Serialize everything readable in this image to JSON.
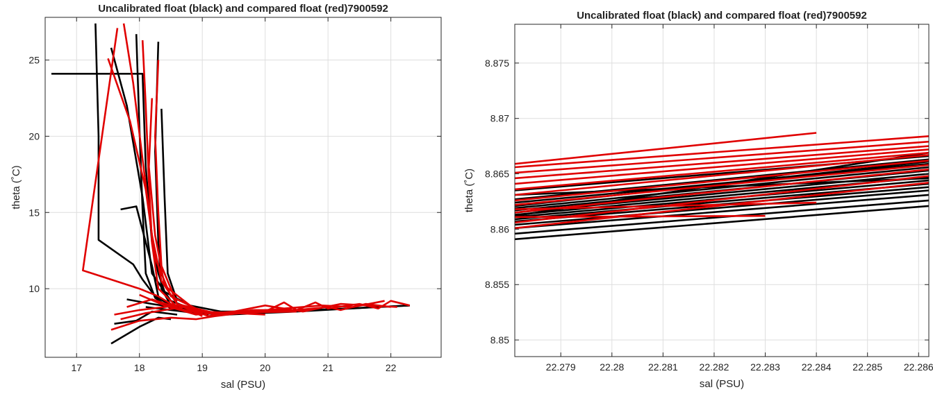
{
  "colors": {
    "uncalibrated": "#000000",
    "compared": "#e00000",
    "grid": "#dedede",
    "axis": "#262626"
  },
  "chart_data": [
    {
      "type": "line",
      "title": "Uncalibrated float (black) and compared float (red)7900592",
      "xlabel": "sal (PSU)",
      "ylabel": "theta (˚C)",
      "xlim": [
        16.5,
        22.8
      ],
      "ylim": [
        5.5,
        27.8
      ],
      "xticks": [
        17,
        18,
        19,
        20,
        21,
        22
      ],
      "yticks": [
        10,
        15,
        20,
        25
      ],
      "xtick_labels": [
        "17",
        "18",
        "19",
        "20",
        "21",
        "22"
      ],
      "ytick_labels": [
        "10",
        "15",
        "20",
        "25"
      ],
      "grid": true,
      "series": [
        {
          "color": "uncalibrated",
          "x": [
            16.6,
            18.05,
            18.1,
            18.2,
            18.3,
            18.4,
            18.8,
            19.3,
            20.2,
            21.3,
            22.3
          ],
          "y": [
            24.1,
            24.1,
            18.0,
            13.0,
            11.0,
            9.8,
            8.9,
            8.5,
            8.5,
            8.7,
            8.9
          ]
        },
        {
          "color": "uncalibrated",
          "x": [
            17.3,
            17.35,
            17.35,
            17.9,
            18.05,
            18.25,
            18.6,
            19.1
          ],
          "y": [
            27.4,
            20.0,
            13.2,
            11.6,
            10.6,
            9.5,
            8.7,
            8.3
          ]
        },
        {
          "color": "uncalibrated",
          "x": [
            17.55,
            17.8,
            18.05,
            18.2,
            18.5,
            19.0
          ],
          "y": [
            25.8,
            22.0,
            16.0,
            11.0,
            9.2,
            8.4
          ]
        },
        {
          "color": "uncalibrated",
          "x": [
            17.95,
            18.0,
            18.05,
            18.1,
            18.25,
            18.5,
            19.0
          ],
          "y": [
            26.7,
            20.5,
            15.2,
            11.0,
            9.4,
            8.7,
            8.3
          ]
        },
        {
          "color": "uncalibrated",
          "x": [
            18.3,
            18.25,
            18.3,
            18.35,
            18.5,
            19.0,
            20.0
          ],
          "y": [
            26.2,
            19.0,
            13.0,
            10.0,
            8.9,
            8.4,
            8.5
          ]
        },
        {
          "color": "uncalibrated",
          "x": [
            17.55,
            18.0,
            18.3,
            18.5
          ],
          "y": [
            6.4,
            7.5,
            8.1,
            8.0
          ]
        },
        {
          "color": "uncalibrated",
          "x": [
            17.6,
            17.95,
            18.2,
            18.6
          ],
          "y": [
            7.7,
            7.9,
            8.5,
            8.3
          ]
        },
        {
          "color": "uncalibrated",
          "x": [
            17.8,
            18.2,
            18.7,
            19.2
          ],
          "y": [
            9.3,
            9.0,
            8.7,
            8.3
          ]
        },
        {
          "color": "uncalibrated",
          "x": [
            18.1,
            18.5,
            18.9,
            19.4,
            20.5,
            21.8,
            22.3
          ],
          "y": [
            8.8,
            8.6,
            8.4,
            8.3,
            8.5,
            8.8,
            8.9
          ]
        },
        {
          "color": "uncalibrated",
          "x": [
            17.7,
            17.95,
            18.2,
            18.3
          ],
          "y": [
            15.2,
            15.4,
            11.5,
            9.5
          ]
        },
        {
          "color": "uncalibrated",
          "x": [
            18.35,
            18.4,
            18.45,
            18.6
          ],
          "y": [
            21.8,
            16.0,
            11.0,
            9.2
          ]
        },
        {
          "color": "compared",
          "x": [
            17.75,
            17.9,
            18.05,
            18.2,
            18.35,
            18.6,
            19.0
          ],
          "y": [
            27.4,
            23.5,
            18.5,
            13.5,
            10.5,
            9.0,
            8.2
          ]
        },
        {
          "color": "compared",
          "x": [
            17.5,
            17.85,
            18.1,
            18.25,
            18.5,
            19.0,
            20.0
          ],
          "y": [
            25.1,
            21.0,
            16.5,
            12.0,
            9.5,
            8.5,
            8.3
          ]
        },
        {
          "color": "compared",
          "x": [
            17.65,
            17.1,
            18.0,
            18.3,
            18.5,
            19.2
          ],
          "y": [
            27.1,
            11.2,
            10.0,
            9.5,
            9.0,
            8.3
          ]
        },
        {
          "color": "compared",
          "x": [
            18.05,
            18.1,
            18.15,
            18.2,
            18.3,
            18.6
          ],
          "y": [
            26.3,
            22.0,
            17.0,
            13.0,
            10.0,
            8.8
          ]
        },
        {
          "color": "compared",
          "x": [
            18.3,
            18.25,
            18.3,
            18.35,
            18.6,
            19.2,
            20.5
          ],
          "y": [
            25.0,
            20.0,
            15.0,
            11.5,
            9.0,
            8.4,
            8.5
          ]
        },
        {
          "color": "compared",
          "x": [
            18.2,
            18.15,
            18.25,
            18.4,
            18.9
          ],
          "y": [
            22.5,
            18.0,
            13.5,
            10.2,
            8.6
          ]
        },
        {
          "color": "compared",
          "x": [
            17.55,
            18.0,
            18.5,
            18.9,
            19.2,
            19.6,
            20.0,
            20.5,
            20.8,
            21.0,
            21.5,
            21.8,
            22.0,
            22.3
          ],
          "y": [
            7.3,
            7.9,
            8.1,
            8.0,
            8.2,
            8.4,
            8.5,
            8.6,
            9.1,
            8.7,
            9.0,
            8.7,
            9.2,
            8.9
          ]
        },
        {
          "color": "compared",
          "x": [
            17.6,
            18.0,
            18.6,
            19.3,
            20.0,
            20.3,
            20.5,
            21.0,
            21.2,
            21.6,
            22.0
          ],
          "y": [
            8.3,
            8.6,
            8.9,
            8.3,
            8.5,
            9.1,
            8.6,
            8.8,
            8.6,
            9.0,
            8.8
          ]
        },
        {
          "color": "compared",
          "x": [
            17.8,
            18.2,
            18.8,
            19.5,
            20.3,
            20.9,
            21.4,
            21.9
          ],
          "y": [
            8.8,
            9.3,
            8.5,
            8.4,
            8.7,
            8.9,
            8.8,
            9.2
          ]
        },
        {
          "color": "compared",
          "x": [
            18.0,
            18.4,
            18.9,
            19.5,
            20.0,
            20.6,
            21.2,
            22.1
          ],
          "y": [
            9.6,
            8.9,
            8.3,
            8.5,
            8.9,
            8.5,
            9.0,
            8.8
          ]
        },
        {
          "color": "compared",
          "x": [
            17.7,
            18.1,
            18.7,
            19.1,
            19.8,
            20.7
          ],
          "y": [
            8.0,
            8.4,
            8.8,
            8.2,
            8.6,
            8.6
          ]
        }
      ]
    },
    {
      "type": "line",
      "title": "Uncalibrated float (black) and compared float (red)7900592",
      "xlabel": "sal (PSU)",
      "ylabel": "theta (˚C)",
      "xlim": [
        22.2781,
        22.2862
      ],
      "ylim": [
        8.8485,
        8.8785
      ],
      "xticks": [
        22.279,
        22.28,
        22.281,
        22.282,
        22.283,
        22.284,
        22.285,
        22.286
      ],
      "yticks": [
        8.85,
        8.855,
        8.86,
        8.865,
        8.87,
        8.875
      ],
      "xtick_labels": [
        "22.279",
        "22.28",
        "22.281",
        "22.282",
        "22.283",
        "22.284",
        "22.285",
        "22.286"
      ],
      "ytick_labels": [
        "8.85",
        "8.855",
        "8.86",
        "8.865",
        "8.87",
        "8.875"
      ],
      "grid": true,
      "series": [
        {
          "color": "uncalibrated",
          "x": [
            22.2781,
            22.2862
          ],
          "y": [
            8.8591,
            8.8621
          ]
        },
        {
          "color": "uncalibrated",
          "x": [
            22.2781,
            22.2862
          ],
          "y": [
            8.8596,
            8.8626
          ]
        },
        {
          "color": "uncalibrated",
          "x": [
            22.2781,
            22.2862
          ],
          "y": [
            8.8601,
            8.8631
          ]
        },
        {
          "color": "uncalibrated",
          "x": [
            22.2781,
            22.2862
          ],
          "y": [
            8.8604,
            8.8635
          ]
        },
        {
          "color": "uncalibrated",
          "x": [
            22.2781,
            22.2862
          ],
          "y": [
            8.8607,
            8.8638
          ]
        },
        {
          "color": "uncalibrated",
          "x": [
            22.2781,
            22.2862
          ],
          "y": [
            8.8609,
            8.8641
          ]
        },
        {
          "color": "uncalibrated",
          "x": [
            22.2781,
            22.2862
          ],
          "y": [
            8.8611,
            8.8644
          ]
        },
        {
          "color": "uncalibrated",
          "x": [
            22.2781,
            22.2862
          ],
          "y": [
            8.8613,
            8.8647
          ]
        },
        {
          "color": "uncalibrated",
          "x": [
            22.2781,
            22.2862
          ],
          "y": [
            8.8615,
            8.865
          ]
        },
        {
          "color": "uncalibrated",
          "x": [
            22.2781,
            22.2862
          ],
          "y": [
            8.8617,
            8.8653
          ]
        },
        {
          "color": "uncalibrated",
          "x": [
            22.2781,
            22.2862
          ],
          "y": [
            8.8619,
            8.8656
          ]
        },
        {
          "color": "uncalibrated",
          "x": [
            22.2781,
            22.2862
          ],
          "y": [
            8.8621,
            8.8661
          ]
        },
        {
          "color": "uncalibrated",
          "x": [
            22.2781,
            22.2862
          ],
          "y": [
            8.8624,
            8.8659
          ]
        },
        {
          "color": "uncalibrated",
          "x": [
            22.2781,
            22.2862
          ],
          "y": [
            8.8627,
            8.8663
          ]
        },
        {
          "color": "uncalibrated",
          "x": [
            22.2781,
            22.2862
          ],
          "y": [
            8.8631,
            8.8646
          ]
        },
        {
          "color": "uncalibrated",
          "x": [
            22.2781,
            22.2862
          ],
          "y": [
            8.8635,
            8.8666
          ]
        },
        {
          "color": "uncalibrated",
          "x": [
            22.2781,
            22.2862
          ],
          "y": [
            8.8612,
            8.8669
          ]
        },
        {
          "color": "compared",
          "x": [
            22.2781,
            22.2862
          ],
          "y": [
            8.8601,
            8.8642
          ]
        },
        {
          "color": "compared",
          "x": [
            22.2781,
            22.2862
          ],
          "y": [
            8.8606,
            8.8648
          ]
        },
        {
          "color": "compared",
          "x": [
            22.2781,
            22.2862
          ],
          "y": [
            8.8615,
            8.8654
          ]
        },
        {
          "color": "compared",
          "x": [
            22.2781,
            22.2862
          ],
          "y": [
            8.8622,
            8.8658
          ]
        },
        {
          "color": "compared",
          "x": [
            22.2781,
            22.2862
          ],
          "y": [
            8.8626,
            8.8662
          ]
        },
        {
          "color": "compared",
          "x": [
            22.2781,
            22.2862
          ],
          "y": [
            8.8631,
            8.8667
          ]
        },
        {
          "color": "compared",
          "x": [
            22.2781,
            22.2862
          ],
          "y": [
            8.8636,
            8.8669
          ]
        },
        {
          "color": "compared",
          "x": [
            22.2781,
            22.2862
          ],
          "y": [
            8.8641,
            8.8672
          ]
        },
        {
          "color": "compared",
          "x": [
            22.2781,
            22.2862
          ],
          "y": [
            8.8646,
            8.8675
          ]
        },
        {
          "color": "compared",
          "x": [
            22.2781,
            22.2862
          ],
          "y": [
            8.8651,
            8.8679
          ]
        },
        {
          "color": "compared",
          "x": [
            22.2781,
            22.2862
          ],
          "y": [
            8.8656,
            8.8684
          ]
        },
        {
          "color": "compared",
          "x": [
            22.2781,
            22.284
          ],
          "y": [
            8.8659,
            8.8687
          ]
        },
        {
          "color": "compared",
          "x": [
            22.2781,
            22.283
          ],
          "y": [
            8.8611,
            8.8612
          ]
        },
        {
          "color": "compared",
          "x": [
            22.2781,
            22.284
          ],
          "y": [
            8.8618,
            8.8624
          ]
        }
      ]
    }
  ]
}
